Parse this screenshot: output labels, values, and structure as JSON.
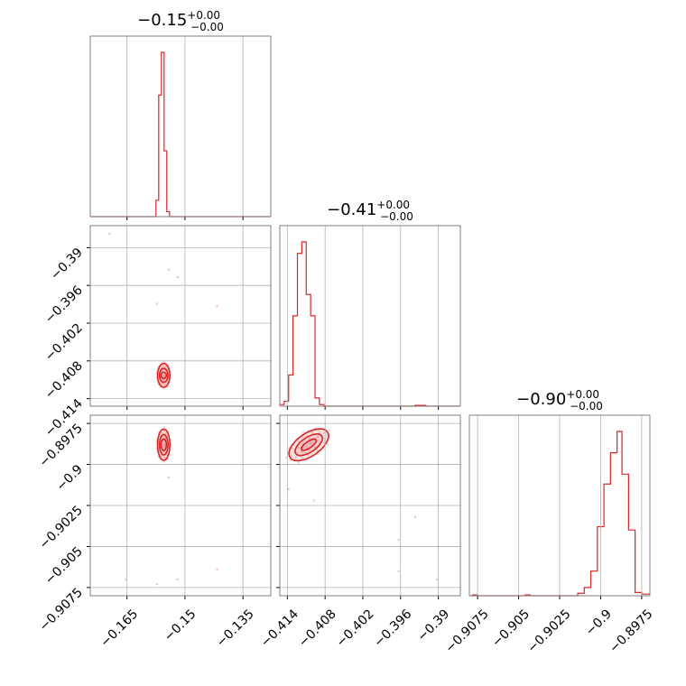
{
  "chart_data": [
    {
      "type": "histogram",
      "panel": "p1",
      "title": {
        "median": "−0.15",
        "upper": "+0.00",
        "lower": "−0.00"
      },
      "xlim": [
        -0.1745,
        -0.1278
      ],
      "xticks": [
        -0.165,
        -0.15,
        -0.135
      ],
      "color": "#d62728",
      "bins": [
        {
          "x0": -0.1745,
          "x1": -0.1575,
          "h": 0.0
        },
        {
          "x0": -0.1575,
          "x1": -0.1568,
          "h": 0.1
        },
        {
          "x0": -0.1568,
          "x1": -0.1561,
          "h": 0.74
        },
        {
          "x0": -0.1561,
          "x1": -0.1554,
          "h": 1.0
        },
        {
          "x0": -0.1554,
          "x1": -0.1547,
          "h": 0.4
        },
        {
          "x0": -0.1547,
          "x1": -0.154,
          "h": 0.03
        },
        {
          "x0": -0.154,
          "x1": -0.1278,
          "h": 0.0
        }
      ]
    },
    {
      "type": "histogram",
      "panel": "p4",
      "title": {
        "median": "−0.41",
        "upper": "+0.00",
        "lower": "−0.00"
      },
      "xlim": [
        -0.4152,
        -0.3865
      ],
      "xticks": [
        -0.414,
        -0.408,
        -0.402,
        -0.396,
        -0.39
      ],
      "color": "#d62728",
      "bins": [
        {
          "x0": -0.4152,
          "x1": -0.4145,
          "h": 0.01
        },
        {
          "x0": -0.4145,
          "x1": -0.4138,
          "h": 0.03
        },
        {
          "x0": -0.4138,
          "x1": -0.4131,
          "h": 0.19
        },
        {
          "x0": -0.4131,
          "x1": -0.4124,
          "h": 0.55
        },
        {
          "x0": -0.4124,
          "x1": -0.4117,
          "h": 0.93
        },
        {
          "x0": -0.4117,
          "x1": -0.411,
          "h": 1.0
        },
        {
          "x0": -0.411,
          "x1": -0.4103,
          "h": 0.68
        },
        {
          "x0": -0.4103,
          "x1": -0.4096,
          "h": 0.55
        },
        {
          "x0": -0.4096,
          "x1": -0.4089,
          "h": 0.05
        },
        {
          "x0": -0.4089,
          "x1": -0.4082,
          "h": 0.01
        },
        {
          "x0": -0.4082,
          "x1": -0.3937,
          "h": 0.0
        },
        {
          "x0": -0.3937,
          "x1": -0.392,
          "h": 0.005
        },
        {
          "x0": -0.392,
          "x1": -0.3865,
          "h": 0.0
        }
      ]
    },
    {
      "type": "histogram",
      "panel": "p6",
      "title": {
        "median": "−0.90",
        "upper": "+0.00",
        "lower": "−0.00"
      },
      "xlim": [
        -0.908,
        -0.897
      ],
      "xticks": [
        -0.9075,
        -0.905,
        -0.9025,
        -0.9,
        -0.8975
      ],
      "color": "#d62728",
      "bins": [
        {
          "x0": -0.908,
          "x1": -0.9078,
          "h": 0.0
        },
        {
          "x0": -0.9078,
          "x1": -0.9075,
          "h": 0.005
        },
        {
          "x0": -0.9075,
          "x1": -0.9046,
          "h": 0.0
        },
        {
          "x0": -0.9046,
          "x1": -0.9043,
          "h": 0.005
        },
        {
          "x0": -0.9043,
          "x1": -0.9014,
          "h": 0.0
        },
        {
          "x0": -0.9014,
          "x1": -0.901,
          "h": 0.015
        },
        {
          "x0": -0.901,
          "x1": -0.9006,
          "h": 0.05
        },
        {
          "x0": -0.9006,
          "x1": -0.9002,
          "h": 0.15
        },
        {
          "x0": -0.9002,
          "x1": -0.8998,
          "h": 0.42
        },
        {
          "x0": -0.8998,
          "x1": -0.8994,
          "h": 0.68
        },
        {
          "x0": -0.8994,
          "x1": -0.899,
          "h": 0.87
        },
        {
          "x0": -0.899,
          "x1": -0.8987,
          "h": 1.0
        },
        {
          "x0": -0.8987,
          "x1": -0.8983,
          "h": 0.74
        },
        {
          "x0": -0.8983,
          "x1": -0.8979,
          "h": 0.4
        },
        {
          "x0": -0.8979,
          "x1": -0.8975,
          "h": 0.02
        },
        {
          "x0": -0.8975,
          "x1": -0.897,
          "h": 0.01
        }
      ]
    },
    {
      "type": "scatter-contour",
      "panel": "p2",
      "xlim": [
        -0.1745,
        -0.1278
      ],
      "ylim": [
        -0.4152,
        -0.3865
      ],
      "xticks": [
        -0.165,
        -0.15,
        -0.135
      ],
      "yticks": [
        -0.39,
        -0.396,
        -0.402,
        -0.408,
        -0.414
      ],
      "color": "#d62728",
      "center": [
        -0.1555,
        -0.4103
      ],
      "contours": [
        {
          "rx": 0.0007,
          "ry": 0.0005,
          "rot": 0
        },
        {
          "rx": 0.0011,
          "ry": 0.0011,
          "rot": 0
        },
        {
          "rx": 0.0016,
          "ry": 0.0019,
          "rot": 0
        }
      ],
      "outliers": [
        [
          -0.1541,
          -0.3935
        ],
        [
          -0.1572,
          -0.3989
        ],
        [
          -0.1417,
          -0.3993
        ],
        [
          -0.1695,
          -0.3878
        ],
        [
          -0.1519,
          -0.3947
        ]
      ]
    },
    {
      "type": "scatter-contour",
      "panel": "p3",
      "xlim": [
        -0.1745,
        -0.1278
      ],
      "ylim": [
        -0.908,
        -0.897
      ],
      "xticks": [
        -0.165,
        -0.15,
        -0.135
      ],
      "yticks": [
        -0.8975,
        -0.9,
        -0.9025,
        -0.905,
        -0.9075
      ],
      "color": "#d62728",
      "center": [
        -0.1555,
        -0.8988
      ],
      "contours": [
        {
          "rx": 0.0007,
          "ry": 0.00035,
          "rot": 0
        },
        {
          "rx": 0.0011,
          "ry": 0.00062,
          "rot": 0
        },
        {
          "rx": 0.0016,
          "ry": 0.00095,
          "rot": 0
        }
      ],
      "outliers": [
        [
          -0.1417,
          -0.9064
        ],
        [
          -0.1653,
          -0.907
        ],
        [
          -0.1519,
          -0.907
        ],
        [
          -0.1542,
          -0.9008
        ],
        [
          -0.1572,
          -0.9073
        ]
      ]
    },
    {
      "type": "scatter-contour",
      "panel": "p5",
      "xlim": [
        -0.4152,
        -0.3865
      ],
      "ylim": [
        -0.908,
        -0.897
      ],
      "xticks": [
        -0.414,
        -0.408,
        -0.402,
        -0.396,
        -0.39
      ],
      "yticks": [
        -0.8975,
        -0.9,
        -0.9025,
        -0.905,
        -0.9075
      ],
      "color": "#d62728",
      "center": [
        -0.4106,
        -0.8988
      ],
      "contours": [
        {
          "rx": 0.0014,
          "ry": 0.0002,
          "rot": -0.6
        },
        {
          "rx": 0.0025,
          "ry": 0.00045,
          "rot": -0.6
        },
        {
          "rx": 0.0036,
          "ry": 0.0007,
          "rot": -0.6
        }
      ],
      "outliers": [
        [
          -0.4138,
          -0.9015
        ],
        [
          -0.4098,
          -0.9022
        ],
        [
          -0.3963,
          -0.9046
        ],
        [
          -0.3937,
          -0.9032
        ],
        [
          -0.3902,
          -0.907
        ],
        [
          -0.3963,
          -0.9065
        ]
      ]
    }
  ]
}
